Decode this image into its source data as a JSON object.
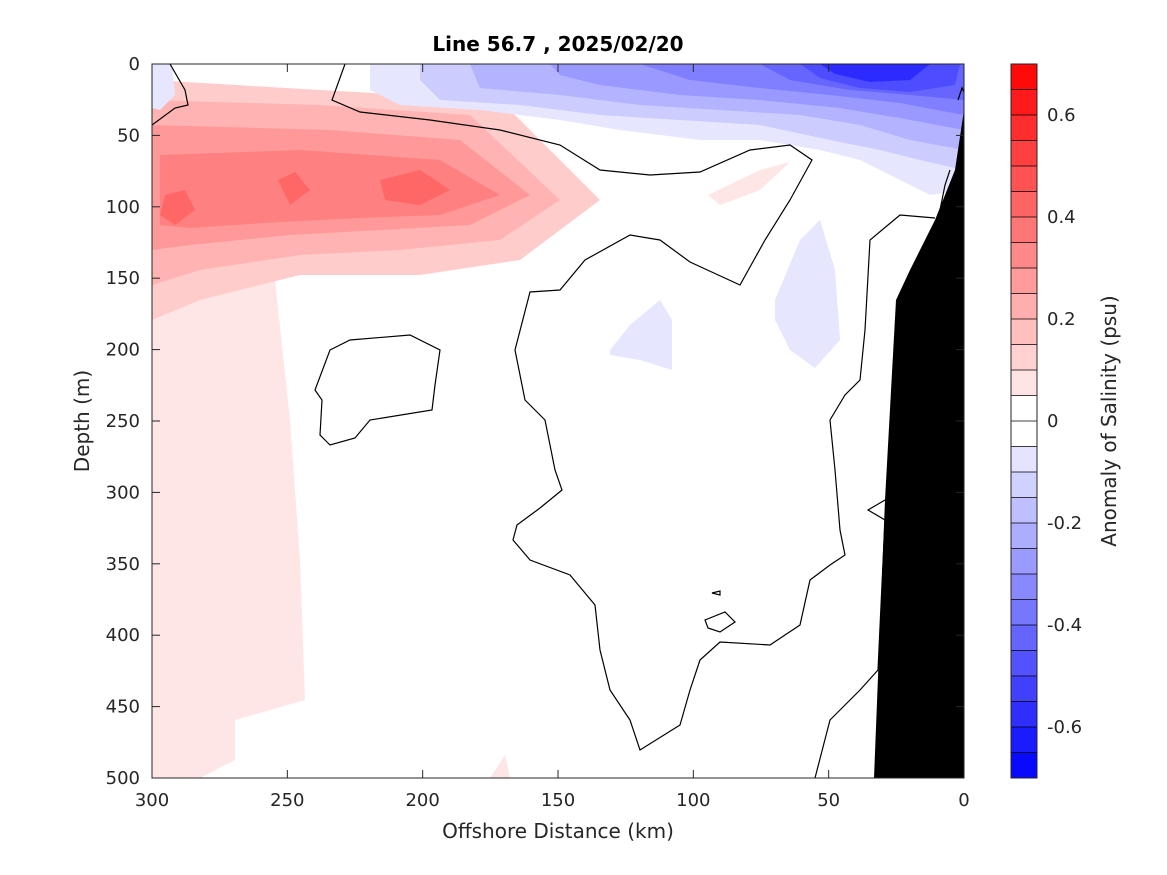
{
  "chart_data": {
    "type": "heatmap",
    "title": "Line 56.7 , 2025/02/20",
    "xlabel": "Offshore Distance (km)",
    "ylabel": "Depth (m)",
    "xlim": [
      300,
      0
    ],
    "ylim": [
      0,
      500
    ],
    "x_reversed": true,
    "y_reversed": true,
    "xticks": [
      300,
      250,
      200,
      150,
      100,
      50,
      0
    ],
    "yticks": [
      0,
      50,
      100,
      150,
      200,
      250,
      300,
      350,
      400,
      450,
      500
    ],
    "colorbar": {
      "label": "Anomaly of Salinity (psu)",
      "range": [
        -0.7,
        0.7
      ],
      "step": 0.05,
      "ticks": [
        0.6,
        0.4,
        0.2,
        0,
        -0.2,
        -0.4,
        -0.6
      ],
      "tick_labels": [
        "0.6",
        "0.4",
        "0.2",
        "0",
        "-0.2",
        "-0.4",
        "-0.6"
      ],
      "low_color": "#0000ff",
      "mid_color": "#ffffff",
      "high_color": "#ff0000"
    },
    "features": [
      {
        "name": "positive anomaly core",
        "x_km": [
          300,
          150
        ],
        "depth_m": [
          50,
          150
        ],
        "max": 0.45
      },
      {
        "name": "negative surface anomaly",
        "x_km": [
          150,
          0
        ],
        "depth_m": [
          0,
          70
        ],
        "min": -0.6
      },
      {
        "name": "weak positive deep",
        "x_km": [
          300,
          240
        ],
        "depth_m": [
          150,
          500
        ],
        "value": 0.05
      },
      {
        "name": "seafloor",
        "x_km": [
          35,
          0
        ],
        "depth_m": [
          40,
          500
        ],
        "color": "#000000"
      }
    ]
  }
}
